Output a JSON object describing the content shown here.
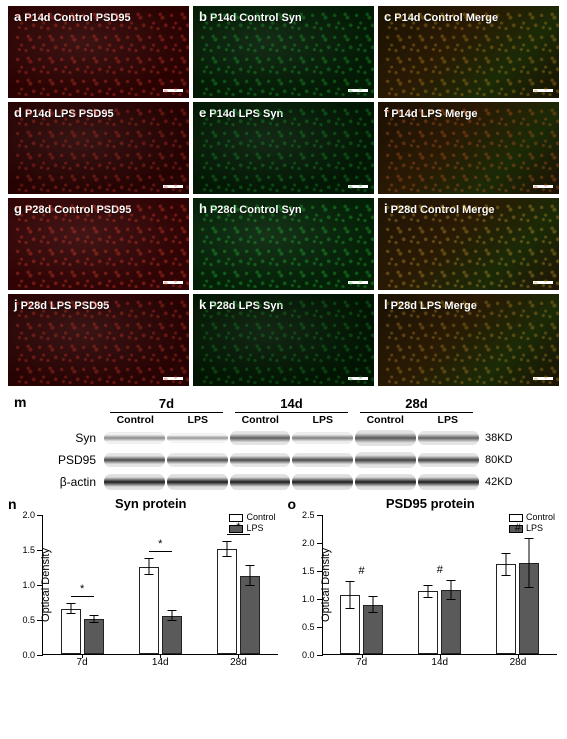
{
  "micrographs": {
    "rows": [
      {
        "panels": [
          {
            "letter": "a",
            "label": "P14d Control PSD95",
            "bg": "#2a0202",
            "speckle": "#d63a2a",
            "extra": ""
          },
          {
            "letter": "b",
            "label": "P14d Control Syn",
            "bg": "#031a05",
            "speckle": "#1fae30",
            "extra": ""
          },
          {
            "letter": "c",
            "label": "P14d Control Merge",
            "bg": "#1a1202",
            "speckle": "#c08a20",
            "extra": "merge"
          }
        ]
      },
      {
        "panels": [
          {
            "letter": "d",
            "label": "P14d LPS PSD95",
            "bg": "#250303",
            "speckle": "#c43322",
            "extra": ""
          },
          {
            "letter": "e",
            "label": "P14d LPS Syn",
            "bg": "#021704",
            "speckle": "#1a9a2a",
            "extra": ""
          },
          {
            "letter": "f",
            "label": "P14d LPS Merge",
            "bg": "#1d1003",
            "speckle": "#c05a20",
            "extra": "merge"
          }
        ]
      },
      {
        "panels": [
          {
            "letter": "g",
            "label": "P28d Control PSD95",
            "bg": "#300404",
            "speckle": "#e0402c",
            "extra": ""
          },
          {
            "letter": "h",
            "label": "P28d Control Syn",
            "bg": "#042006",
            "speckle": "#22c038",
            "extra": ""
          },
          {
            "letter": "i",
            "label": "P28d Control Merge",
            "bg": "#201404",
            "speckle": "#c89a30",
            "extra": "merge"
          }
        ]
      },
      {
        "panels": [
          {
            "letter": "j",
            "label": "P28d LPS PSD95",
            "bg": "#280303",
            "speckle": "#cc3826",
            "extra": ""
          },
          {
            "letter": "k",
            "label": "P28d LPS Syn",
            "bg": "#021503",
            "speckle": "#168a24",
            "extra": ""
          },
          {
            "letter": "l",
            "label": "P28d LPS Merge",
            "bg": "#1b1203",
            "speckle": "#b88828",
            "extra": "merge"
          }
        ]
      }
    ]
  },
  "western_blot": {
    "letter": "m",
    "timepoints": [
      "7d",
      "14d",
      "28d"
    ],
    "conditions": [
      "Control",
      "LPS"
    ],
    "rows": [
      {
        "name": "Syn",
        "kd": "38KD",
        "intensities": [
          0.45,
          0.35,
          0.85,
          0.55,
          0.9,
          0.8
        ],
        "base": "#4a4a4a"
      },
      {
        "name": "PSD95",
        "kd": "80KD",
        "intensities": [
          0.8,
          0.75,
          0.82,
          0.8,
          0.88,
          0.86
        ],
        "base": "#2f2f2f"
      },
      {
        "name": "β-actin",
        "kd": "42KD",
        "intensities": [
          0.95,
          0.95,
          0.95,
          0.95,
          0.95,
          0.95
        ],
        "base": "#151515"
      }
    ],
    "lane_bg": "#e3e3e3"
  },
  "charts": {
    "ylabel": "Optical Density",
    "legend": [
      {
        "label": "Control",
        "color": "#ffffff"
      },
      {
        "label": "LPS",
        "color": "#5a5a5a"
      }
    ],
    "x_categories": [
      "7d",
      "14d",
      "28d"
    ],
    "syn": {
      "letter": "n",
      "title": "Syn protein",
      "ymax": 2.0,
      "ytick_step": 0.5,
      "groups": [
        {
          "control": 0.65,
          "c_err": 0.08,
          "lps": 0.5,
          "l_err": 0.06,
          "sig": "*",
          "sigline": true
        },
        {
          "control": 1.25,
          "c_err": 0.12,
          "lps": 0.55,
          "l_err": 0.08,
          "sig": "*",
          "sigline": true
        },
        {
          "control": 1.5,
          "c_err": 0.12,
          "lps": 1.12,
          "l_err": 0.15,
          "sig": "*",
          "sigline": true
        }
      ]
    },
    "psd95": {
      "letter": "o",
      "title": "PSD95 protein",
      "ymax": 2.5,
      "ytick_step": 0.5,
      "groups": [
        {
          "control": 1.05,
          "c_err": 0.25,
          "lps": 0.88,
          "l_err": 0.15,
          "sig": "#",
          "sigline": false
        },
        {
          "control": 1.12,
          "c_err": 0.12,
          "lps": 1.15,
          "l_err": 0.18,
          "sig": "#",
          "sigline": false
        },
        {
          "control": 1.6,
          "c_err": 0.2,
          "lps": 1.62,
          "l_err": 0.45,
          "sig": "#",
          "sigline": false
        }
      ]
    }
  },
  "colors": {
    "control_bar": "#ffffff",
    "lps_bar": "#5a5a5a",
    "axis": "#000000"
  }
}
